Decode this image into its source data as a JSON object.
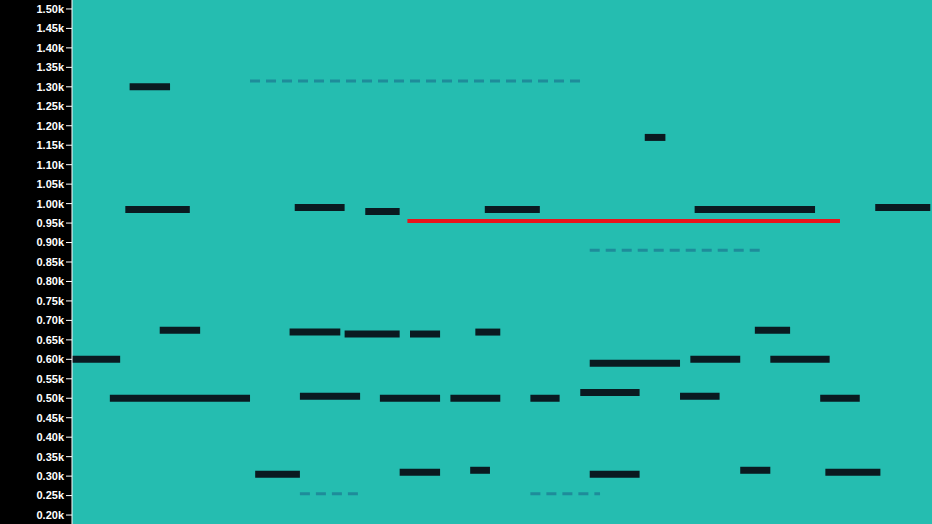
{
  "chart_data": {
    "type": "spectrogram",
    "tick_labels": "y",
    "xlim": [
      0,
      100
    ],
    "ylim": [
      177,
      1523
    ],
    "yticks": [
      {
        "value": 200,
        "label": "0.20k"
      },
      {
        "value": 250,
        "label": "0.25k"
      },
      {
        "value": 300,
        "label": "0.30k"
      },
      {
        "value": 350,
        "label": "0.35k"
      },
      {
        "value": 400,
        "label": "0.40k"
      },
      {
        "value": 450,
        "label": "0.45k"
      },
      {
        "value": 500,
        "label": "0.50k"
      },
      {
        "value": 550,
        "label": "0.55k"
      },
      {
        "value": 600,
        "label": "0.60k"
      },
      {
        "value": 650,
        "label": "0.65k"
      },
      {
        "value": 700,
        "label": "0.70k"
      },
      {
        "value": 750,
        "label": "0.75k"
      },
      {
        "value": 800,
        "label": "0.80k"
      },
      {
        "value": 850,
        "label": "0.85k"
      },
      {
        "value": 900,
        "label": "0.90k"
      },
      {
        "value": 950,
        "label": "0.95k"
      },
      {
        "value": 1000,
        "label": "1.00k"
      },
      {
        "value": 1050,
        "label": "1.05k"
      },
      {
        "value": 1100,
        "label": "1.10k"
      },
      {
        "value": 1150,
        "label": "1.15k"
      },
      {
        "value": 1200,
        "label": "1.20k"
      },
      {
        "value": 1250,
        "label": "1.25k"
      },
      {
        "value": 1300,
        "label": "1.30k"
      },
      {
        "value": 1350,
        "label": "1.35k"
      },
      {
        "value": 1400,
        "label": "1.40k"
      },
      {
        "value": 1450,
        "label": "1.45k"
      },
      {
        "value": 1500,
        "label": "1.50k"
      }
    ],
    "color": "#25bdb0",
    "faint_traces": {
      "color": "#1e8c9a",
      "segments": [
        {
          "x": [
            20.7,
            59.1
          ],
          "y": 1315
        },
        {
          "x": [
            60.2,
            80.0
          ],
          "y": 880
        },
        {
          "x": [
            26.5,
            33.5
          ],
          "y": 255
        },
        {
          "x": [
            53.3,
            61.4
          ],
          "y": 255
        }
      ]
    },
    "traces": {
      "color": "#0a1a20",
      "segments": [
        {
          "x": [
            6.2,
            13.7
          ],
          "y": 985
        },
        {
          "x": [
            25.9,
            31.7
          ],
          "y": 990
        },
        {
          "x": [
            34.1,
            38.1
          ],
          "y": 980
        },
        {
          "x": [
            48.0,
            54.4
          ],
          "y": 985
        },
        {
          "x": [
            72.4,
            86.4
          ],
          "y": 985
        },
        {
          "x": [
            93.4,
            99.8
          ],
          "y": 990
        },
        {
          "x": [
            6.7,
            11.4
          ],
          "y": 1300
        },
        {
          "x": [
            66.6,
            69.0
          ],
          "y": 1170
        },
        {
          "x": [
            10.2,
            14.9
          ],
          "y": 675
        },
        {
          "x": [
            25.3,
            31.2
          ],
          "y": 670
        },
        {
          "x": [
            31.7,
            38.1
          ],
          "y": 665
        },
        {
          "x": [
            39.3,
            42.8
          ],
          "y": 665
        },
        {
          "x": [
            46.9,
            49.8
          ],
          "y": 670
        },
        {
          "x": [
            79.4,
            83.5
          ],
          "y": 675
        },
        {
          "x": [
            0,
            5.6
          ],
          "y": 600
        },
        {
          "x": [
            60.2,
            70.7
          ],
          "y": 590
        },
        {
          "x": [
            71.9,
            77.7
          ],
          "y": 600
        },
        {
          "x": [
            81.2,
            88.1
          ],
          "y": 600
        },
        {
          "x": [
            4.4,
            20.7
          ],
          "y": 500
        },
        {
          "x": [
            26.5,
            33.5
          ],
          "y": 505
        },
        {
          "x": [
            35.8,
            42.8
          ],
          "y": 500
        },
        {
          "x": [
            44.0,
            49.8
          ],
          "y": 500
        },
        {
          "x": [
            53.3,
            56.7
          ],
          "y": 500
        },
        {
          "x": [
            59.1,
            66.0
          ],
          "y": 515
        },
        {
          "x": [
            70.7,
            75.3
          ],
          "y": 505
        },
        {
          "x": [
            87.0,
            91.6
          ],
          "y": 500
        },
        {
          "x": [
            21.3,
            26.5
          ],
          "y": 305
        },
        {
          "x": [
            38.1,
            42.8
          ],
          "y": 310
        },
        {
          "x": [
            46.3,
            48.6
          ],
          "y": 315
        },
        {
          "x": [
            60.2,
            66.0
          ],
          "y": 305
        },
        {
          "x": [
            77.7,
            81.2
          ],
          "y": 315
        },
        {
          "x": [
            87.6,
            94.0
          ],
          "y": 310
        }
      ]
    },
    "reference_line": {
      "x": [
        39.0,
        89.3
      ],
      "y": 955,
      "color": "#e8141c"
    }
  }
}
